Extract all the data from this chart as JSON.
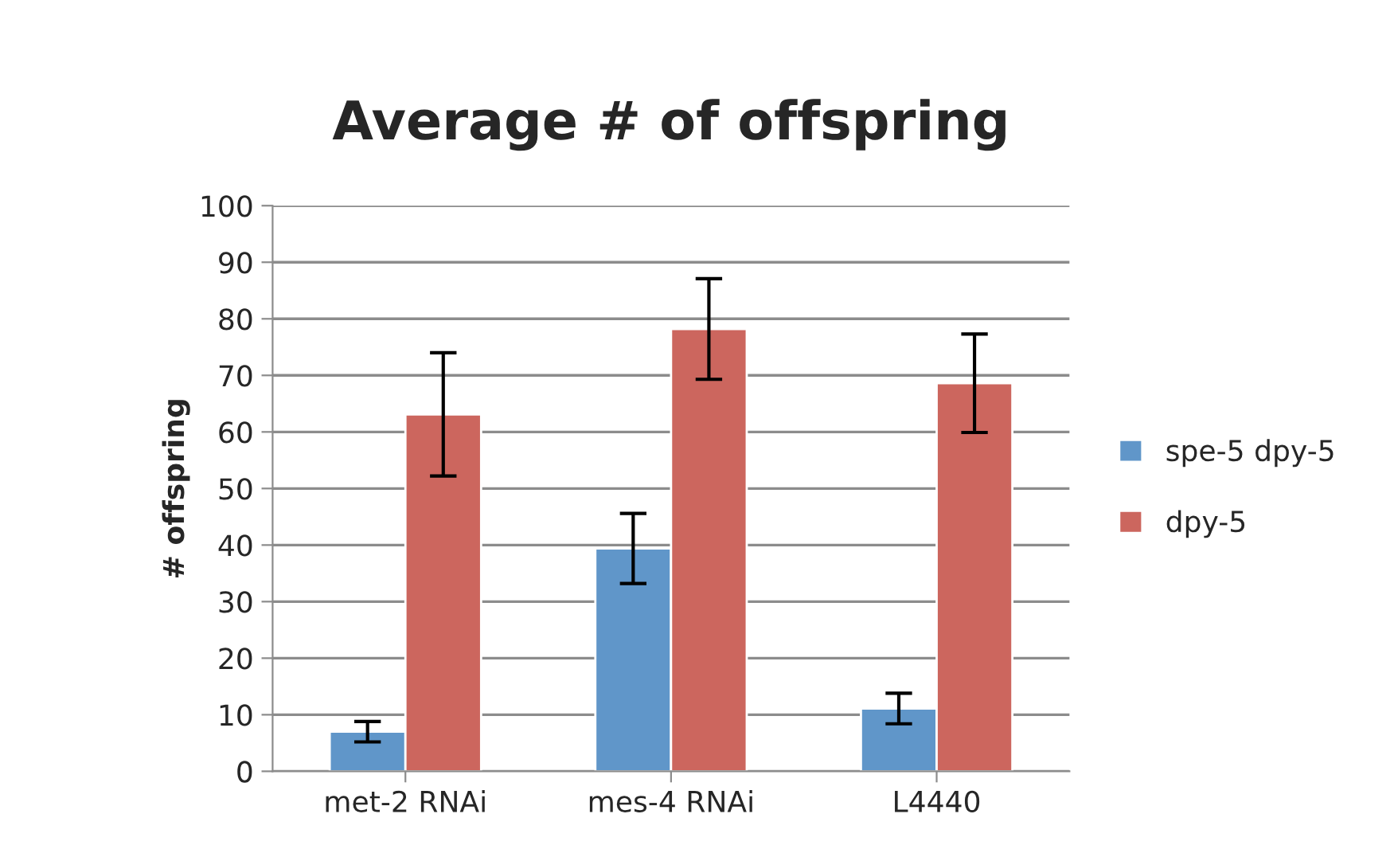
{
  "chart_data": {
    "type": "bar",
    "title": "Average # of offspring",
    "ylabel": "# offspring",
    "categories": [
      "met-2 RNAi",
      "mes-4 RNAi",
      "L4440"
    ],
    "series": [
      {
        "name": "spe-5 dpy-5",
        "color": "#6096c9",
        "values": [
          7.0,
          39.4,
          11.1
        ],
        "errors": [
          1.8,
          6.2,
          2.7
        ]
      },
      {
        "name": "dpy-5",
        "color": "#cc665e",
        "values": [
          63.1,
          78.2,
          68.6
        ],
        "errors": [
          10.9,
          8.9,
          8.7
        ]
      }
    ],
    "ylim": [
      0,
      100
    ],
    "yticks": [
      0,
      10,
      20,
      30,
      40,
      50,
      60,
      70,
      80,
      90,
      100
    ],
    "grid": "y",
    "legend": "right"
  }
}
